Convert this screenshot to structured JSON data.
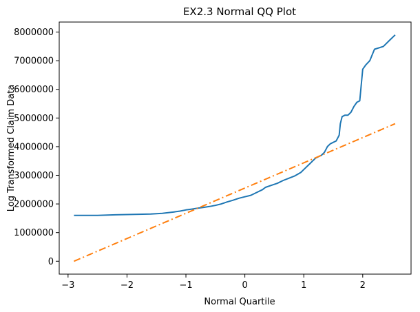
{
  "chart_data": {
    "type": "line",
    "title": "EX2.3 Normal QQ Plot",
    "xlabel": "Normal Quartile",
    "ylabel": "Log Transformed Claim Data",
    "xlim": [
      -3.15,
      2.82
    ],
    "ylim": [
      -450000,
      8350000
    ],
    "xticks": [
      -3,
      -2,
      -1,
      0,
      1,
      2
    ],
    "xtick_labels": [
      "−3",
      "−2",
      "−1",
      "0",
      "1",
      "2"
    ],
    "yticks": [
      0,
      1000000,
      2000000,
      3000000,
      4000000,
      5000000,
      6000000,
      7000000,
      8000000
    ],
    "ytick_labels": [
      "0",
      "1000000",
      "2000000",
      "3000000",
      "4000000",
      "5000000",
      "6000000",
      "7000000",
      "8000000"
    ],
    "grid": false,
    "legend": "none",
    "series": [
      {
        "color": "#1f77b4",
        "style": "solid",
        "x": [
          -2.9,
          -2.5,
          -2.2,
          -2.0,
          -1.8,
          -1.6,
          -1.4,
          -1.2,
          -1.1,
          -1.0,
          -0.9,
          -0.8,
          -0.7,
          -0.6,
          -0.5,
          -0.4,
          -0.3,
          -0.2,
          -0.1,
          0.0,
          0.1,
          0.2,
          0.3,
          0.35,
          0.45,
          0.55,
          0.65,
          0.75,
          0.85,
          0.95,
          1.0,
          1.1,
          1.15,
          1.2,
          1.3,
          1.35,
          1.4,
          1.45,
          1.5,
          1.55,
          1.6,
          1.62,
          1.65,
          1.7,
          1.75,
          1.8,
          1.85,
          1.9,
          1.95,
          2.0,
          2.05,
          2.12,
          2.2,
          2.35,
          2.45,
          2.55
        ],
        "y": [
          1600000,
          1600000,
          1620000,
          1630000,
          1640000,
          1650000,
          1670000,
          1720000,
          1750000,
          1790000,
          1820000,
          1850000,
          1880000,
          1910000,
          1950000,
          2000000,
          2070000,
          2130000,
          2200000,
          2250000,
          2300000,
          2400000,
          2500000,
          2580000,
          2650000,
          2720000,
          2820000,
          2900000,
          2980000,
          3100000,
          3200000,
          3400000,
          3500000,
          3600000,
          3700000,
          3800000,
          4000000,
          4100000,
          4150000,
          4200000,
          4400000,
          4800000,
          5050000,
          5100000,
          5100000,
          5200000,
          5400000,
          5550000,
          5600000,
          6700000,
          6850000,
          7000000,
          7400000,
          7500000,
          7700000,
          7900000
        ]
      },
      {
        "color": "#ff7f0e",
        "style": "dashdot",
        "x": [
          -2.9,
          2.55
        ],
        "y": [
          0,
          4800000
        ]
      }
    ]
  }
}
